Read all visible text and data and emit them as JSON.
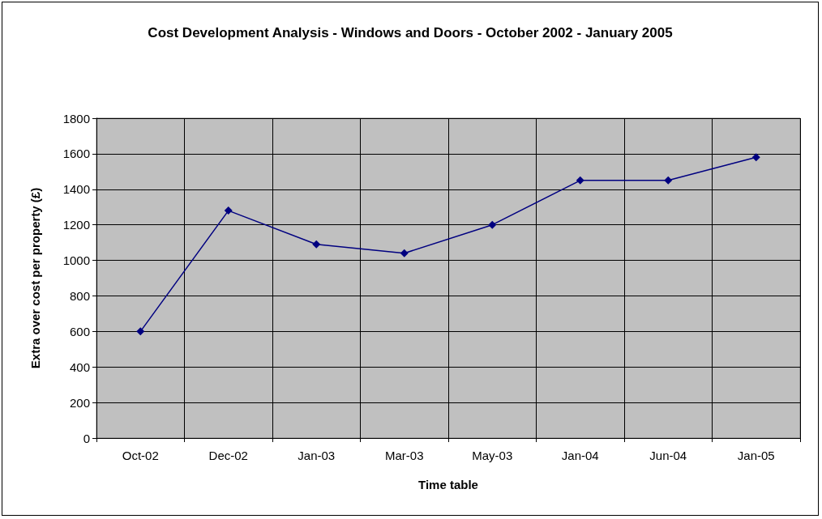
{
  "chart_data": {
    "type": "line",
    "title": "Cost Development Analysis - Windows and Doors - October 2002 - January 2005",
    "xlabel": "Time table",
    "ylabel": "Extra over cost per property (£)",
    "categories": [
      "Oct-02",
      "Dec-02",
      "Jan-03",
      "Mar-03",
      "May-03",
      "Jan-04",
      "Jun-04",
      "Jan-05"
    ],
    "series": [
      {
        "color": "#000080",
        "values": [
          600,
          1280,
          1090,
          1040,
          1200,
          1450,
          1450,
          1580
        ]
      }
    ],
    "ylim": [
      0,
      1800
    ],
    "yticks": [
      0,
      200,
      400,
      600,
      800,
      1000,
      1200,
      1400,
      1600,
      1800
    ],
    "grid": true,
    "marker": "diamond",
    "line_style": "solid"
  }
}
